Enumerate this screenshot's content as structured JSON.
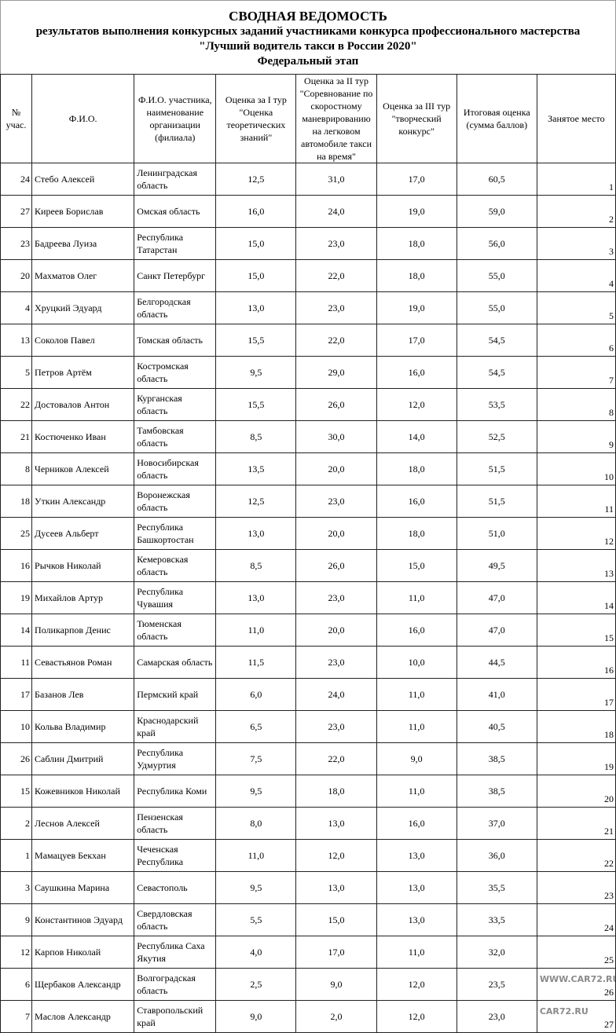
{
  "title": {
    "line1": "СВОДНАЯ ВЕДОМОСТЬ",
    "line2": "результатов выполнения конкурсных заданий участниками конкурса профессионального мастерства",
    "line3": "\"Лучший водитель такси в России 2020\"",
    "line4": "Федеральный этап"
  },
  "headers": [
    "№ учас.",
    "Ф.И.О.",
    "Ф.И.О. участника, наименование организации (филиала)",
    "Оценка за I тур \"Оценка теоретических знаний\"",
    "Оценка за II тур \"Соревнование по скоростному маневрированию на легковом автомобиле такси на время\"",
    "Оценка за III тур \"творческий конкурс\"",
    "Итоговая оценка (сумма баллов)",
    "Занятое место"
  ],
  "rows": [
    [
      "24",
      "Стебо Алексей",
      "Ленинградская область",
      "12,5",
      "31,0",
      "17,0",
      "60,5",
      "1"
    ],
    [
      "27",
      "Киреев Борислав",
      "Омская область",
      "16,0",
      "24,0",
      "19,0",
      "59,0",
      "2"
    ],
    [
      "23",
      "Бадреева Луиза",
      "Республика Татарстан",
      "15,0",
      "23,0",
      "18,0",
      "56,0",
      "3"
    ],
    [
      "20",
      "Махматов Олег",
      "Санкт Петербург",
      "15,0",
      "22,0",
      "18,0",
      "55,0",
      "4"
    ],
    [
      "4",
      "Хруцкий Эдуард",
      "Белгородская область",
      "13,0",
      "23,0",
      "19,0",
      "55,0",
      "5"
    ],
    [
      "13",
      "Соколов Павел",
      "Томская область",
      "15,5",
      "22,0",
      "17,0",
      "54,5",
      "6"
    ],
    [
      "5",
      "Петров Артём",
      "Костромская область",
      "9,5",
      "29,0",
      "16,0",
      "54,5",
      "7"
    ],
    [
      "22",
      "Достовалов Антон",
      "Курганская область",
      "15,5",
      "26,0",
      "12,0",
      "53,5",
      "8"
    ],
    [
      "21",
      "Костюченко Иван",
      "Тамбовская область",
      "8,5",
      "30,0",
      "14,0",
      "52,5",
      "9"
    ],
    [
      "8",
      "Черников Алексей",
      "Новосибирская область",
      "13,5",
      "20,0",
      "18,0",
      "51,5",
      "10"
    ],
    [
      "18",
      "Уткин Александр",
      "Воронежская область",
      "12,5",
      "23,0",
      "16,0",
      "51,5",
      "11"
    ],
    [
      "25",
      "Дусеев Альберт",
      "Республика Башкортостан",
      "13,0",
      "20,0",
      "18,0",
      "51,0",
      "12"
    ],
    [
      "16",
      "Рычков Николай",
      "Кемеровская область",
      "8,5",
      "26,0",
      "15,0",
      "49,5",
      "13"
    ],
    [
      "19",
      "Михайлов Артур",
      "Республика Чувашия",
      "13,0",
      "23,0",
      "11,0",
      "47,0",
      "14"
    ],
    [
      "14",
      "Поликарпов Денис",
      "Тюменская область",
      "11,0",
      "20,0",
      "16,0",
      "47,0",
      "15"
    ],
    [
      "11",
      "Севастьянов Роман",
      "Самарская область",
      "11,5",
      "23,0",
      "10,0",
      "44,5",
      "16"
    ],
    [
      "17",
      "Базанов Лев",
      "Пермский край",
      "6,0",
      "24,0",
      "11,0",
      "41,0",
      "17"
    ],
    [
      "10",
      "Кольва Владимир",
      "Краснодарский край",
      "6,5",
      "23,0",
      "11,0",
      "40,5",
      "18"
    ],
    [
      "26",
      "Саблин Дмитрий",
      "Республика Удмуртия",
      "7,5",
      "22,0",
      "9,0",
      "38,5",
      "19"
    ],
    [
      "15",
      "Кожевников Николай",
      "Республика Коми",
      "9,5",
      "18,0",
      "11,0",
      "38,5",
      "20"
    ],
    [
      "2",
      "Леснов Алексей",
      "Пензенская область",
      "8,0",
      "13,0",
      "16,0",
      "37,0",
      "21"
    ],
    [
      "1",
      "Мамацуев Бекхан",
      "Чеченская Республика",
      "11,0",
      "12,0",
      "13,0",
      "36,0",
      "22"
    ],
    [
      "3",
      "Саушкина Марина",
      "Севастополь",
      "9,5",
      "13,0",
      "13,0",
      "35,5",
      "23"
    ],
    [
      "9",
      "Константинов Эдуард",
      "Свердловская область",
      "5,5",
      "15,0",
      "13,0",
      "33,5",
      "24"
    ],
    [
      "12",
      "Карпов Николай",
      "Республика Саха Якутия",
      "4,0",
      "17,0",
      "11,0",
      "32,0",
      "25"
    ],
    [
      "6",
      "Щербаков Александр",
      "Волгоградская область",
      "2,5",
      "9,0",
      "12,0",
      "23,5",
      "26"
    ],
    [
      "7",
      "Маслов Александр",
      "Ставропольский край",
      "9,0",
      "2,0",
      "12,0",
      "23,0",
      "27"
    ]
  ],
  "watermark": {
    "line1": "WWW.CAR72.RU",
    "line2": "CAR72.RU"
  }
}
